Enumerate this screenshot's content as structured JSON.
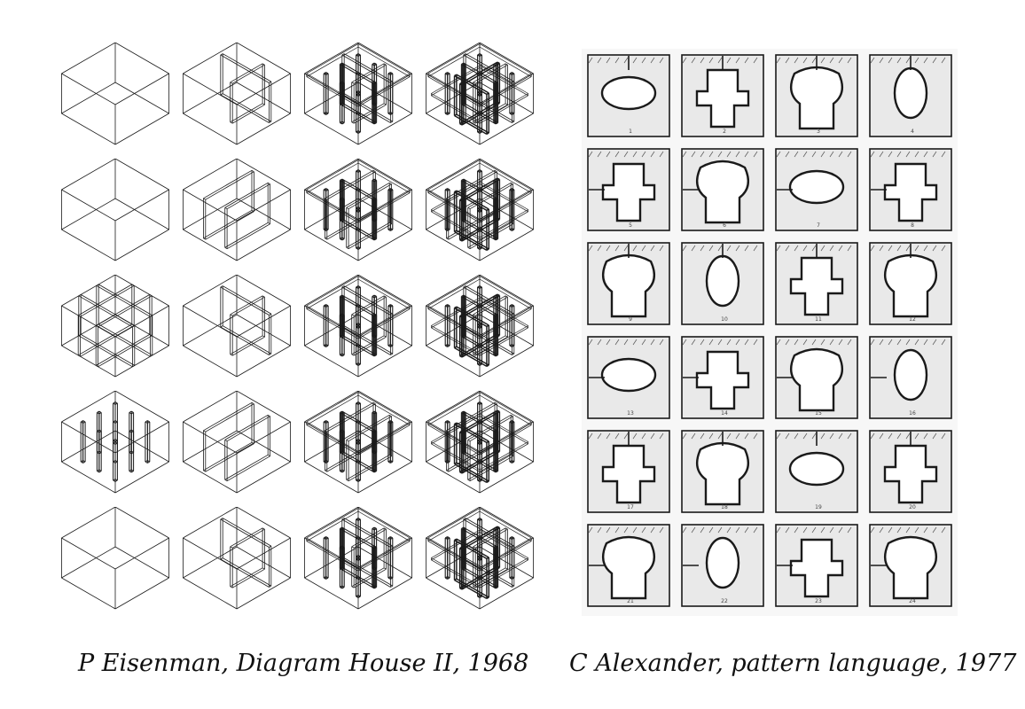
{
  "figure": {
    "left": {
      "caption": "P Eisenman, Diagram House II, 1968",
      "rows": 5,
      "cols": 4
    },
    "right": {
      "caption": "C Alexander, pattern language, 1977",
      "rows": 6,
      "cols": 4,
      "numbers": [
        "1",
        "2",
        "3",
        "4",
        "5",
        "6",
        "7",
        "8",
        "9",
        "10",
        "11",
        "12",
        "13",
        "14",
        "15",
        "16",
        "17",
        "18",
        "19",
        "20",
        "21",
        "22",
        "23",
        "24"
      ]
    }
  },
  "colors": {
    "ink": "#1a1a1a",
    "hatch": "#555555",
    "paper": "#f7f7f7"
  }
}
